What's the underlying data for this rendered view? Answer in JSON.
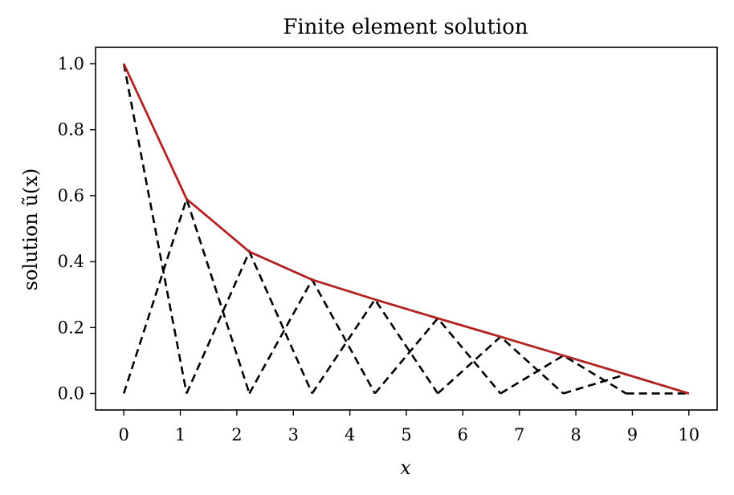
{
  "chart_data": {
    "type": "line",
    "title": "Finite element solution",
    "xlabel": "x",
    "ylabel": "solution ũ(x)",
    "xlim": [
      -0.5,
      10.5
    ],
    "ylim": [
      -0.05,
      1.05
    ],
    "x_ticks": [
      0,
      1,
      2,
      3,
      4,
      5,
      6,
      7,
      8,
      9,
      10
    ],
    "x_tick_labels": [
      "0",
      "1",
      "2",
      "3",
      "4",
      "5",
      "6",
      "7",
      "8",
      "9",
      "10"
    ],
    "y_ticks": [
      0.0,
      0.2,
      0.4,
      0.6,
      0.8,
      1.0
    ],
    "y_tick_labels": [
      "0.0",
      "0.2",
      "0.4",
      "0.6",
      "0.8",
      "1.0"
    ],
    "grid": false,
    "nodes": [
      0,
      1.111,
      2.222,
      3.333,
      4.444,
      5.556,
      6.667,
      7.778,
      8.889,
      10
    ],
    "solution": {
      "color": "#b22222",
      "values": [
        1.0,
        0.59,
        0.43,
        0.345,
        0.285,
        0.228,
        0.172,
        0.115,
        0.058,
        0.0
      ]
    },
    "basis_functions": {
      "color": "#000000",
      "style": "dashed",
      "description_type": "scaled hat functions",
      "peaks": [
        1.0,
        0.59,
        0.43,
        0.345,
        0.285,
        0.228,
        0.172,
        0.115,
        0.058,
        0.0
      ]
    }
  }
}
